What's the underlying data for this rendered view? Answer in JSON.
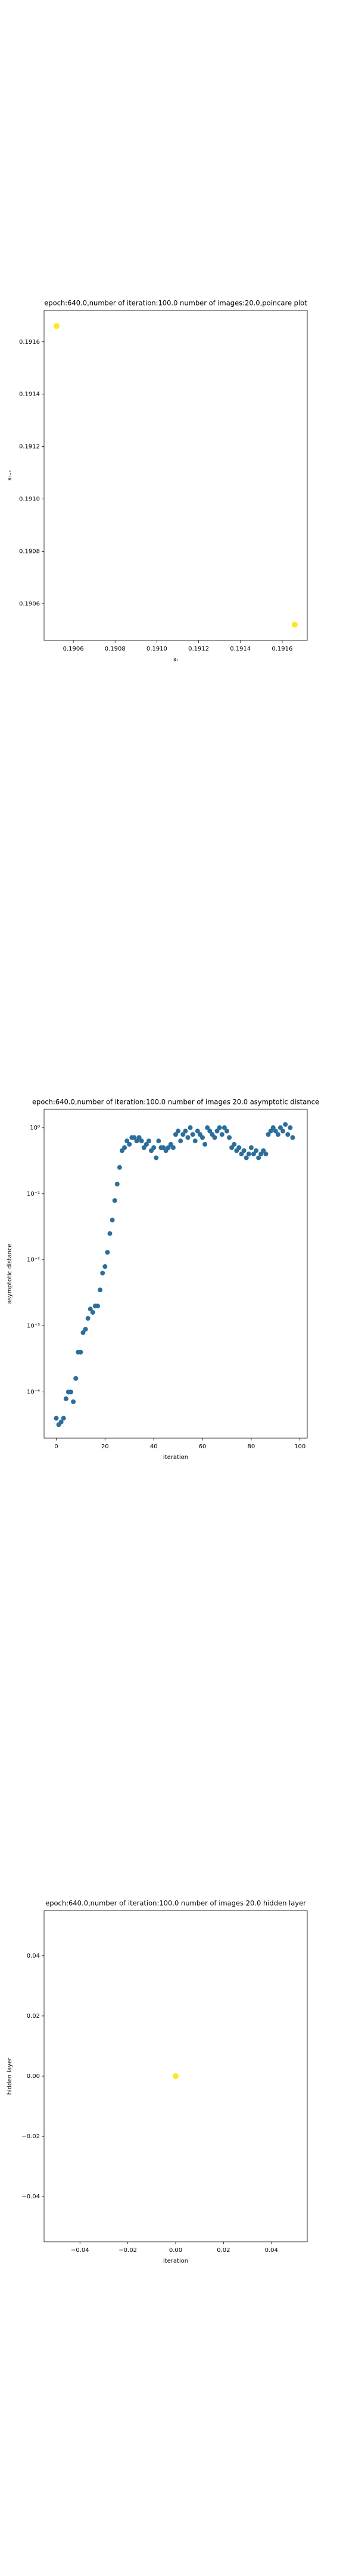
{
  "chart_data": [
    {
      "type": "scatter",
      "title": "epoch:640.0,number of iteration:100.0 number of images:20.0,poincare plot",
      "x_label": "xₜ",
      "y_label": "xₜ₊₁",
      "x": [
        0.19052,
        0.19166
      ],
      "values": [
        0.19166,
        0.19052
      ],
      "color": "#fde725",
      "xlim": [
        0.19046,
        0.19172
      ],
      "ylim": [
        0.19046,
        0.19172
      ],
      "xticks": [
        0.1906,
        0.1908,
        {
          "value": 0.191,
          "label": "0.1910"
        },
        0.1912,
        0.1914,
        0.1916
      ],
      "yticks": [
        0.1906,
        0.1908,
        {
          "value": 0.191,
          "label": "0.1910"
        },
        0.1912,
        0.1914,
        0.1916
      ]
    },
    {
      "type": "scatter",
      "title": "epoch:640.0,number of iteration:100.0  number of images 20.0 asymptotic distance",
      "x_label": "iteration",
      "y_label": "asymptotic distance",
      "yscale": "log",
      "color": "#2c6e9b",
      "x": [
        0,
        1,
        2,
        3,
        4,
        5,
        6,
        7,
        8,
        9,
        10,
        11,
        12,
        13,
        14,
        15,
        16,
        17,
        18,
        19,
        20,
        21,
        22,
        23,
        24,
        25,
        26,
        27,
        28,
        29,
        30,
        31,
        32,
        33,
        34,
        35,
        36,
        37,
        38,
        39,
        40,
        41,
        42,
        43,
        44,
        45,
        46,
        47,
        48,
        49,
        50,
        51,
        52,
        53,
        54,
        55,
        56,
        57,
        58,
        59,
        60,
        61,
        62,
        63,
        64,
        65,
        66,
        67,
        68,
        69,
        70,
        71,
        72,
        73,
        74,
        75,
        76,
        77,
        78,
        79,
        80,
        81,
        82,
        83,
        84,
        85,
        86,
        87,
        88,
        89,
        90,
        91,
        92,
        93,
        94,
        95,
        96,
        97
      ],
      "values": [
        4e-05,
        3.2e-05,
        3.5e-05,
        4e-05,
        7.9e-05,
        0.0001,
        0.0001,
        7.1e-05,
        0.00016,
        0.0004,
        0.0004,
        0.00079,
        0.00089,
        0.0013,
        0.0018,
        0.0016,
        0.002,
        0.002,
        0.0035,
        0.0063,
        0.0079,
        0.013,
        0.025,
        0.04,
        0.079,
        0.14,
        0.25,
        0.45,
        0.5,
        0.63,
        0.56,
        0.71,
        0.71,
        0.63,
        0.71,
        0.63,
        0.5,
        0.56,
        0.63,
        0.45,
        0.5,
        0.35,
        0.63,
        0.5,
        0.5,
        0.45,
        0.5,
        0.56,
        0.5,
        0.79,
        0.89,
        0.63,
        0.79,
        0.89,
        0.71,
        1.0,
        0.79,
        0.63,
        0.89,
        0.79,
        0.71,
        0.56,
        1.0,
        0.89,
        0.79,
        0.71,
        0.89,
        1.0,
        0.79,
        1.0,
        0.89,
        0.71,
        0.5,
        0.56,
        0.45,
        0.5,
        0.4,
        0.45,
        0.35,
        0.4,
        0.5,
        0.4,
        0.45,
        0.35,
        0.4,
        0.45,
        0.4,
        0.79,
        0.89,
        1.0,
        0.89,
        0.79,
        1.0,
        0.89,
        1.12,
        0.79,
        1.0,
        0.71
      ],
      "xlim": [
        -5,
        103
      ],
      "ylim": [
        2e-05,
        1.9
      ],
      "xticks": [
        0,
        20,
        40,
        60,
        80,
        100
      ],
      "yticks": [
        {
          "value": 1,
          "label": "10⁰"
        },
        {
          "value": 0.1,
          "label": "10⁻¹"
        },
        {
          "value": 0.01,
          "label": "10⁻²"
        },
        {
          "value": 0.001,
          "label": "10⁻³"
        },
        {
          "value": 0.0001,
          "label": "10⁻⁴"
        }
      ]
    },
    {
      "type": "scatter",
      "title": "epoch:640.0,number of iteration:100.0  number of images 20.0 hidden layer",
      "x_label": "iteration",
      "y_label": "hidden layer",
      "color": "#fde725",
      "x": [
        0
      ],
      "values": [
        0
      ],
      "xlim": [
        -0.055,
        0.055
      ],
      "ylim": [
        -0.055,
        0.055
      ],
      "xticks": [
        {
          "value": -0.04,
          "label": "−0.04"
        },
        {
          "value": -0.02,
          "label": "−0.02"
        },
        {
          "value": 0,
          "label": "0.00"
        },
        0.02,
        0.04
      ],
      "yticks": [
        {
          "value": -0.04,
          "label": "−0.04"
        },
        {
          "value": -0.02,
          "label": "−0.02"
        },
        {
          "value": 0,
          "label": "0.00"
        },
        0.02,
        0.04
      ]
    }
  ]
}
